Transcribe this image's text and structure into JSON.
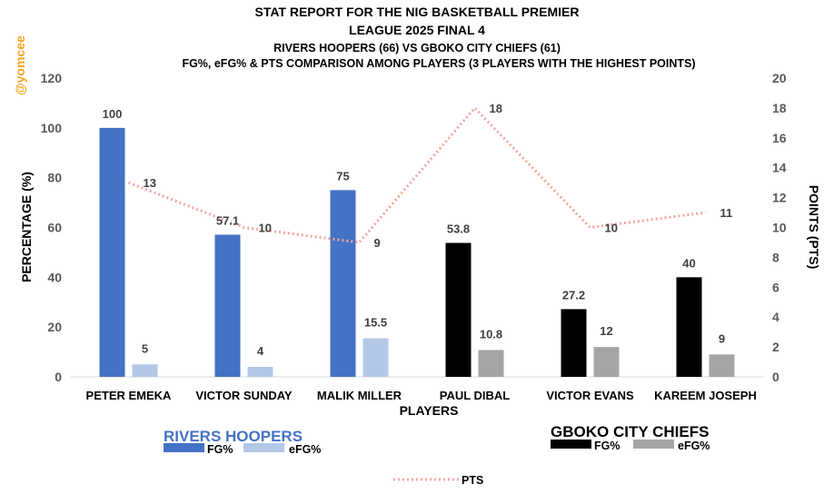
{
  "watermark": "@yomcee",
  "chart_data": {
    "type": "bar",
    "title_lines": [
      "STAT REPORT FOR THE NIG BASKETBALL PREMIER",
      "LEAGUE 2025 FINAL 4"
    ],
    "subtitle_lines": [
      "RIVERS HOOPERS (66) VS GBOKO CITY CHIEFS (61)",
      "FG%, eFG% & PTS COMPARISON AMONG PLAYERS (3 PLAYERS WITH THE HIGHEST POINTS)"
    ],
    "xlabel": "PLAYERS",
    "ylabel": "PERCENTAGE (%)",
    "y2label": "POINTS (PTS)",
    "ylim": [
      0,
      120
    ],
    "yticks": [
      0,
      20,
      40,
      60,
      80,
      100,
      120
    ],
    "y2lim": [
      0,
      20
    ],
    "y2ticks": [
      0,
      2,
      4,
      6,
      8,
      10,
      12,
      14,
      16,
      18,
      20
    ],
    "categories": [
      "PETER EMEKA",
      "VICTOR SUNDAY",
      "MALIK MILLER",
      "PAUL DIBAL",
      "VICTOR EVANS",
      "KAREEM JOSEPH"
    ],
    "teams": [
      "RIVERS HOOPERS",
      "RIVERS HOOPERS",
      "RIVERS HOOPERS",
      "GBOKO CITY CHIEFS",
      "GBOKO CITY CHIEFS",
      "GBOKO CITY CHIEFS"
    ],
    "series": [
      {
        "name": "FG%",
        "values": [
          100,
          57.1,
          75,
          53.8,
          27.2,
          40
        ],
        "labels": [
          "100",
          "57.1",
          "75",
          "53.8",
          "27.2",
          "40"
        ],
        "colors": [
          "#4472c4",
          "#4472c4",
          "#4472c4",
          "#000000",
          "#000000",
          "#000000"
        ]
      },
      {
        "name": "eFG%",
        "values": [
          5,
          4,
          15.5,
          10.8,
          12,
          9
        ],
        "labels": [
          "5",
          "4",
          "15.5",
          "10.8",
          "12",
          "9"
        ],
        "colors": [
          "#b4c7e7",
          "#b4c7e7",
          "#b4c7e7",
          "#a5a5a5",
          "#a5a5a5",
          "#a5a5a5"
        ]
      },
      {
        "name": "PTS",
        "axis": "secondary",
        "values": [
          13,
          10,
          9,
          18,
          10,
          11
        ],
        "labels": [
          "13",
          "10",
          "9",
          "18",
          "10",
          "11"
        ],
        "color": "#f4a7a3"
      }
    ],
    "legend": {
      "rivers": {
        "title": "RIVERS HOOPERS",
        "items": [
          {
            "label": "FG%",
            "color": "#4472c4"
          },
          {
            "label": "eFG%",
            "color": "#b4c7e7"
          }
        ]
      },
      "gboko": {
        "title": "GBOKO CITY CHIEFS",
        "items": [
          {
            "label": "FG%",
            "color": "#000000"
          },
          {
            "label": "eFG%",
            "color": "#a5a5a5"
          }
        ]
      },
      "pts": {
        "label": "PTS",
        "color": "#f4a7a3"
      }
    }
  }
}
